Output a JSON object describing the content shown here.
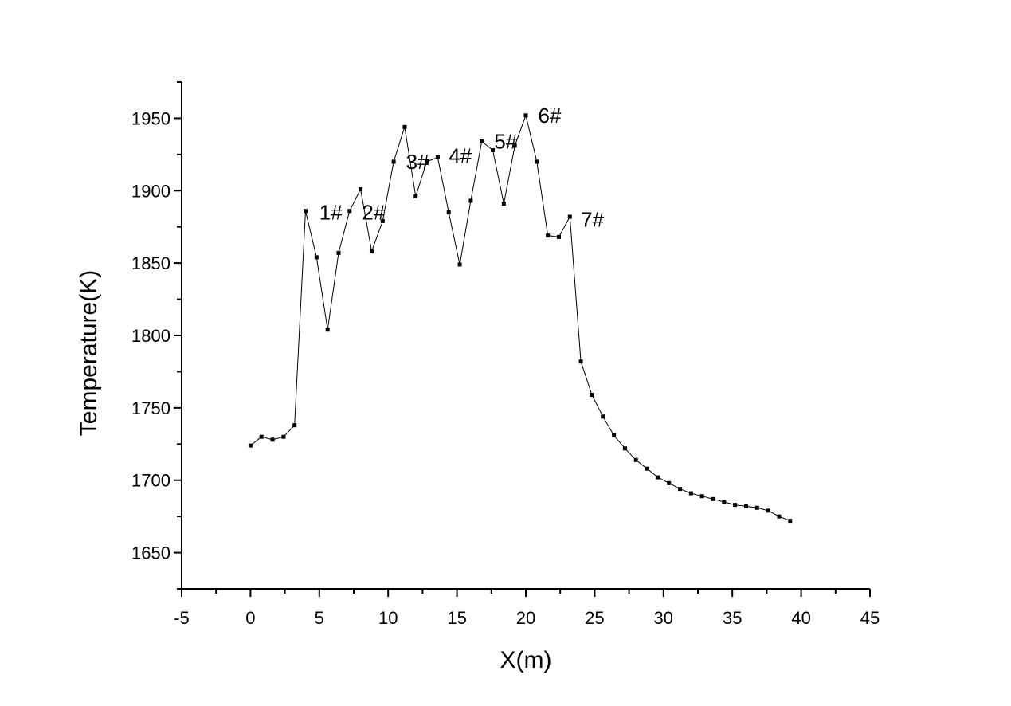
{
  "chart_data": {
    "type": "line",
    "title": "",
    "xlabel": "X(m)",
    "ylabel": "Temperature(K)",
    "xlim": [
      -5,
      45
    ],
    "ylim": [
      1625,
      1975
    ],
    "x_ticks": [
      -5,
      0,
      5,
      10,
      15,
      20,
      25,
      30,
      35,
      40,
      45
    ],
    "y_ticks": [
      1650,
      1700,
      1750,
      1800,
      1850,
      1900,
      1950
    ],
    "grid": false,
    "legend": "none",
    "series": [
      {
        "marker": "square",
        "color": "#000000",
        "x": [
          0,
          0.8,
          1.6,
          2.4,
          3.2,
          4.0,
          4.8,
          5.6,
          6.4,
          7.2,
          8.0,
          8.8,
          9.6,
          10.4,
          11.2,
          12.0,
          12.8,
          13.6,
          14.4,
          15.2,
          16.0,
          16.8,
          17.6,
          18.4,
          19.2,
          20.0,
          20.8,
          21.6,
          22.4,
          23.2,
          24.0,
          24.8,
          25.6,
          26.4,
          27.2,
          28.0,
          28.8,
          29.6,
          30.4,
          31.2,
          32.0,
          32.8,
          33.6,
          34.4,
          35.2,
          36.0,
          36.8,
          37.6,
          38.4,
          39.2
        ],
        "y": [
          1724,
          1730,
          1728,
          1730,
          1738,
          1886,
          1854,
          1804,
          1857,
          1886,
          1901,
          1858,
          1879,
          1920,
          1944,
          1896,
          1920,
          1923,
          1885,
          1849,
          1893,
          1934,
          1928,
          1891,
          1931,
          1952,
          1920,
          1869,
          1868,
          1882,
          1782,
          1759,
          1744,
          1731,
          1722,
          1714,
          1708,
          1702,
          1698,
          1694,
          1691,
          1689,
          1687,
          1685,
          1683,
          1682,
          1681,
          1679,
          1675,
          1672
        ]
      }
    ],
    "annotations": [
      {
        "text": "1#",
        "x": 5.0,
        "y": 1885
      },
      {
        "text": "2#",
        "x": 8.1,
        "y": 1885
      },
      {
        "text": "3#",
        "x": 11.3,
        "y": 1920
      },
      {
        "text": "4#",
        "x": 14.4,
        "y": 1924
      },
      {
        "text": "5#",
        "x": 17.7,
        "y": 1934
      },
      {
        "text": "6#",
        "x": 20.9,
        "y": 1952
      },
      {
        "text": "7#",
        "x": 24.0,
        "y": 1880
      }
    ]
  }
}
